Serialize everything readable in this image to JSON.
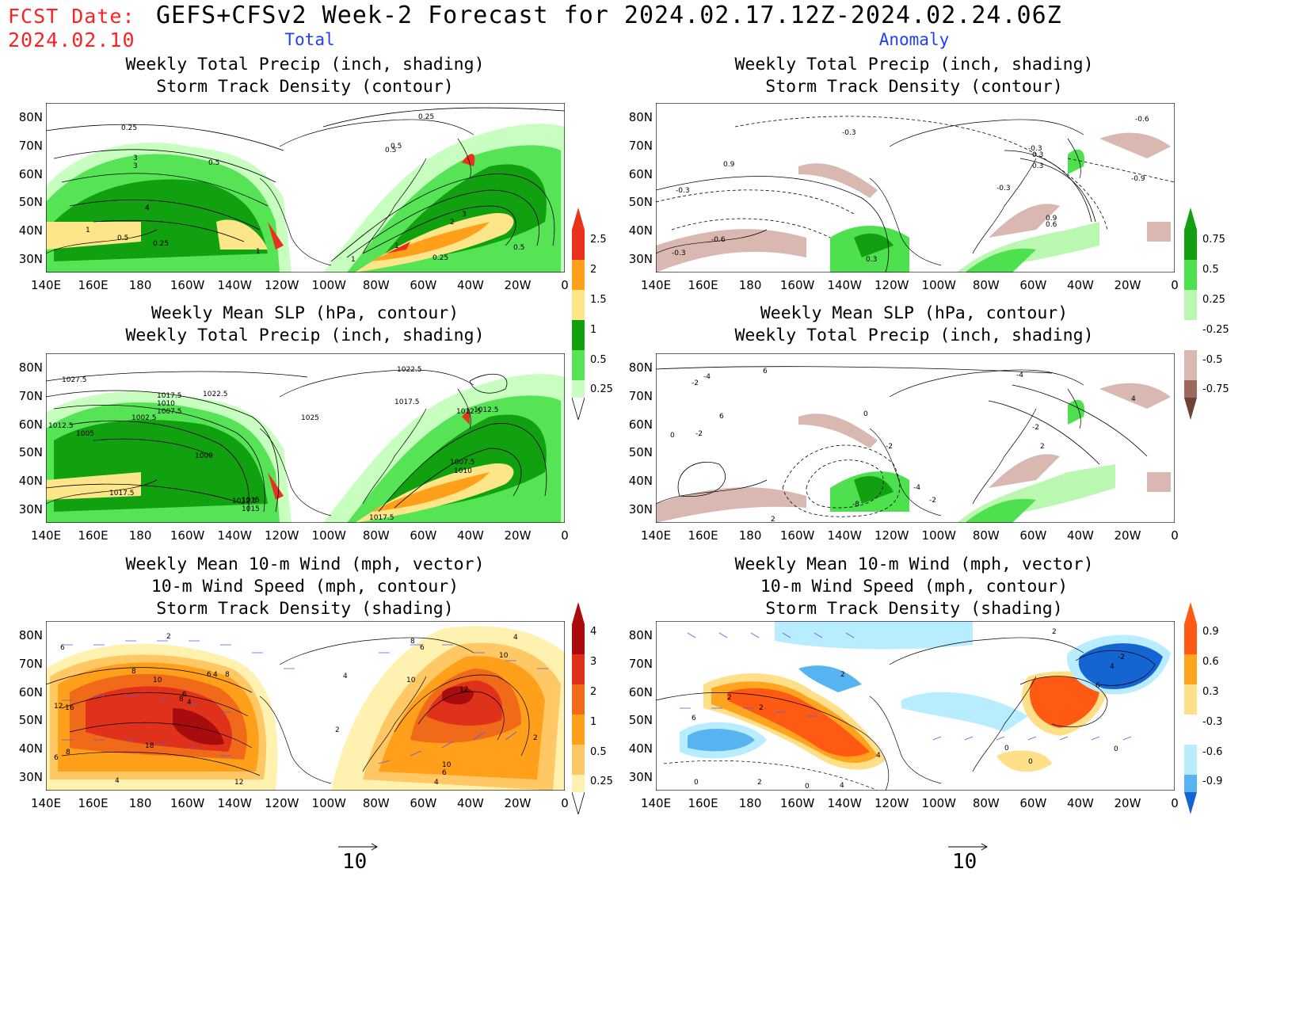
{
  "header": {
    "fcst_label": "FCST Date:",
    "fcst_date": "2024.02.10",
    "title": "GEFS+CFSv2 Week-2 Forecast for 2024.02.17.12Z-2024.02.24.06Z",
    "col_total": "Total",
    "col_anomaly": "Anomaly"
  },
  "axes": {
    "lat_labels": [
      "80N",
      "70N",
      "60N",
      "50N",
      "40N",
      "30N"
    ],
    "lon_labels": [
      "140E",
      "160E",
      "180",
      "160W",
      "140W",
      "120W",
      "100W",
      "80W",
      "60W",
      "40W",
      "20W",
      "0"
    ]
  },
  "panels": [
    {
      "id": "total-precip-storm",
      "title": [
        "Weekly Total Precip (inch, shading)",
        "Storm Track Density (contour)"
      ]
    },
    {
      "id": "anom-precip-storm",
      "title": [
        "Weekly Total Precip (inch, shading)",
        "Storm Track Density (contour)"
      ]
    },
    {
      "id": "total-slp-precip",
      "title": [
        "Weekly Mean SLP (hPa, contour)",
        "Weekly Total Precip (inch, shading)"
      ]
    },
    {
      "id": "anom-slp-precip",
      "title": [
        "Weekly Mean SLP (hPa, contour)",
        "Weekly Total Precip (inch, shading)"
      ]
    },
    {
      "id": "total-wind-storm",
      "title": [
        "Weekly Mean 10-m Wind (mph, vector)",
        "10-m Wind Speed (mph, contour)",
        "Storm Track Density (shading)"
      ]
    },
    {
      "id": "anom-wind-storm",
      "title": [
        "Weekly Mean 10-m Wind (mph, vector)",
        "10-m Wind Speed (mph, contour)",
        "Storm Track Density (shading)"
      ]
    }
  ],
  "colorbars": {
    "precip_total": {
      "labels": [
        "2.5",
        "2",
        "1.5",
        "1",
        "0.5",
        "0.25"
      ],
      "colors": [
        "#e8321e",
        "#ff9f1a",
        "#fde68a",
        "#10a010",
        "#56e456",
        "#c8ffc0"
      ]
    },
    "precip_anom": {
      "labels": [
        "0.75",
        "0.5",
        "0.25",
        "-0.25",
        "-0.5",
        "-0.75"
      ],
      "colors": [
        "#12a012",
        "#4ee04e",
        "#baf7b0",
        "#ffffff",
        "#d8b8b0",
        "#9c6a5c",
        "#6b4436"
      ]
    },
    "storm_total": {
      "labels": [
        "4",
        "3",
        "2",
        "1",
        "0.5",
        "0.25"
      ],
      "colors": [
        "#a80c0c",
        "#e0321a",
        "#f06a1a",
        "#ff9f1a",
        "#ffc864",
        "#fff2b0"
      ]
    },
    "storm_anom": {
      "labels": [
        "0.9",
        "0.6",
        "0.3",
        "-0.3",
        "-0.6",
        "-0.9"
      ],
      "colors": [
        "#ff5a14",
        "#ffa41e",
        "#ffe088",
        "#ffffff",
        "#b8ecff",
        "#58b4f0",
        "#1464d2"
      ]
    }
  },
  "contour_labels": {
    "p1": [
      "0.25",
      "0.25",
      "3",
      "3",
      "0.5",
      "4",
      "1",
      "0.5",
      "0.25",
      "1",
      "0.5",
      "1",
      "2",
      "3",
      "1",
      "0.25",
      "0.5",
      "0.5"
    ],
    "p2": [
      "-0.3",
      "0.9",
      "-0.3",
      "-0.3",
      "-0.6",
      "-0.3",
      "0.3",
      "-0.6",
      "0.3",
      "-0.9",
      "0.9",
      "0.6",
      "0.3",
      "-0.3"
    ],
    "p3": [
      "1027.5",
      "1017.5",
      "1022.5",
      "1010",
      "1007.5",
      "1002.5",
      "1012.5",
      "1005",
      "1025",
      "1000",
      "1017.5",
      "1015",
      "1012.5",
      "1022.5",
      "1017.5",
      "1012.5",
      "1007.5",
      "1010",
      "1017.5",
      "1012.5",
      "1015"
    ],
    "p4": [
      "-4",
      "6",
      "-2",
      "6",
      "0",
      "-2",
      "0",
      "-4",
      "-8",
      "-2",
      "-2",
      "-4",
      "2",
      "2",
      "4",
      "-2"
    ],
    "p5": [
      "2",
      "6",
      "8",
      "10",
      "6",
      "4",
      "8",
      "6",
      "4",
      "8",
      "12",
      "16",
      "18",
      "8",
      "6",
      "12",
      "4",
      "8",
      "4",
      "6",
      "12",
      "10",
      "4",
      "10",
      "2",
      "2",
      "10",
      "6",
      "4"
    ],
    "p6": [
      "2",
      "2",
      "2",
      "6",
      "4",
      "-2",
      "4",
      "6",
      "0",
      "0",
      "2",
      "4",
      "0",
      "2",
      "0",
      "0"
    ]
  },
  "vector_ref": {
    "label": "10"
  }
}
